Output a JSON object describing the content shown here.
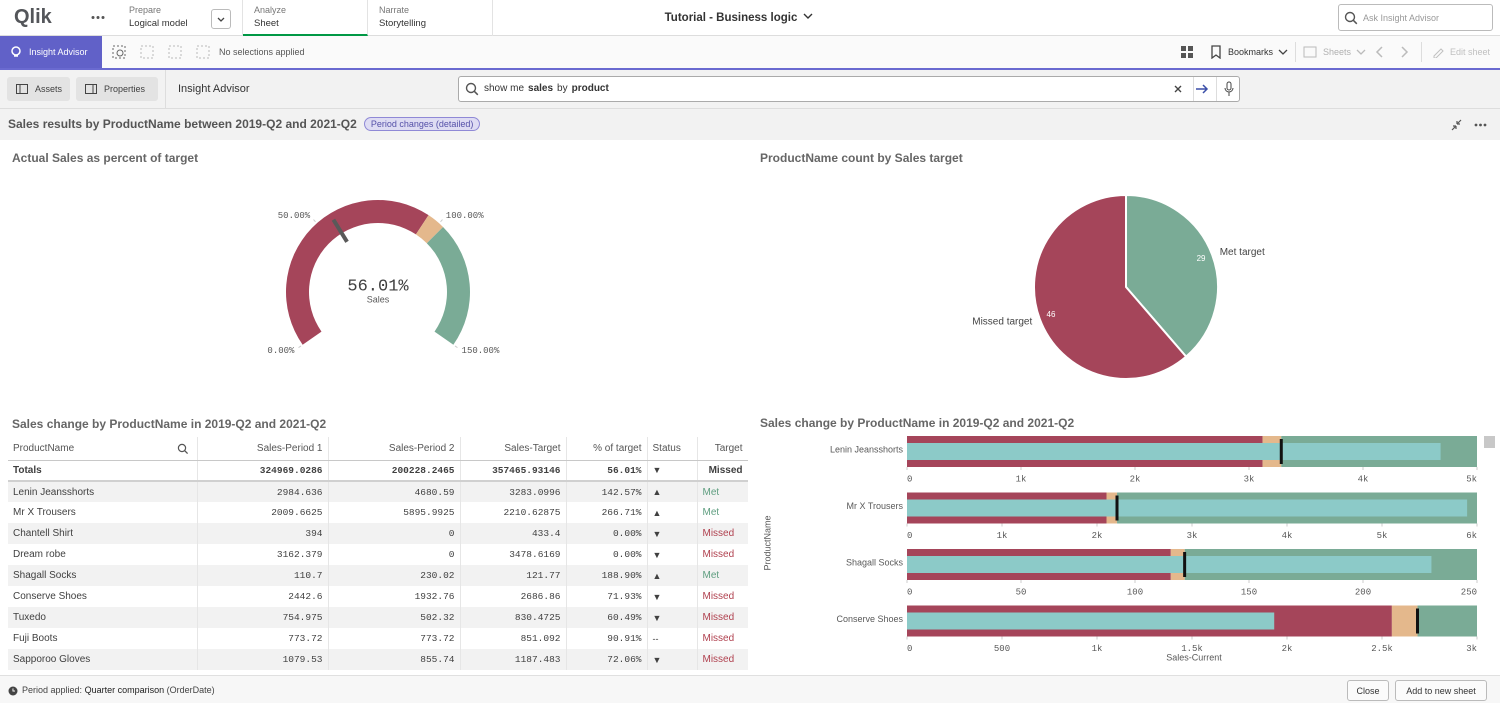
{
  "topbar": {
    "logo": "Qlik",
    "tabs": [
      {
        "label": "Prepare",
        "sub": "Logical model"
      },
      {
        "label": "Analyze",
        "sub": "Sheet"
      },
      {
        "label": "Narrate",
        "sub": "Storytelling"
      }
    ],
    "app_title": "Tutorial - Business logic",
    "search_placeholder": "Ask Insight Advisor"
  },
  "toolbar": {
    "insight_button": "Insight Advisor",
    "selections": "No selections applied",
    "bookmarks": "Bookmarks",
    "sheets": "Sheets",
    "edit": "Edit sheet"
  },
  "panel_bar": {
    "assets": "Assets",
    "properties": "Properties",
    "title": "Insight Advisor",
    "query": [
      {
        "text": "show me",
        "bold": false
      },
      {
        "text": "sales",
        "bold": true
      },
      {
        "text": "by",
        "bold": false
      },
      {
        "text": "product",
        "bold": true
      }
    ]
  },
  "results": {
    "title": "Sales results by ProductName between 2019-Q2 and 2021-Q2",
    "badge": "Period changes (detailed)"
  },
  "chart_data": [
    {
      "type": "gauge",
      "title": "Actual Sales as percent of target",
      "value": 56.01,
      "value_label": "56.01%",
      "measure": "Sales",
      "ylim": [
        0,
        150
      ],
      "yticks": [
        {
          "value": 0,
          "label": "0.00%"
        },
        {
          "value": 50,
          "label": "50.00%"
        },
        {
          "value": 100,
          "label": "100.00%"
        },
        {
          "value": 150,
          "label": "150.00%"
        }
      ],
      "segments": [
        {
          "to": 95,
          "color": "#a5455a"
        },
        {
          "to": 102,
          "color": "#e4b88c"
        },
        {
          "to": 150,
          "color": "#7aab96"
        }
      ],
      "needle_color": "#595959"
    },
    {
      "type": "pie",
      "title": "ProductName count by Sales target",
      "categories": [
        "Met target",
        "Missed target"
      ],
      "values": [
        29,
        46
      ],
      "colors": [
        "#7aab96",
        "#a5455a"
      ]
    },
    {
      "type": "bullet",
      "title": "Sales change by ProductName in 2019-Q2 and 2021-Q2",
      "ylabel": "ProductName",
      "xlabel": "Sales-Current",
      "range_colors": [
        "#a5455a",
        "#e4b88c",
        "#7aab96"
      ],
      "bar_color": "#8ccac8",
      "marker_color": "#111111",
      "bullets": [
        {
          "category": "Lenin Jeansshorts",
          "value": 4680.59,
          "target": 3283.0996,
          "ranges": [
            3119,
            3283
          ],
          "xlim": [
            0,
            5000
          ],
          "xticks": [
            0,
            {
              "value": 1000,
              "label": "1k"
            },
            {
              "value": 2000,
              "label": "2k"
            },
            {
              "value": 3000,
              "label": "3k"
            },
            {
              "value": 4000,
              "label": "4k"
            },
            {
              "value": 5000,
              "label": "5k"
            }
          ]
        },
        {
          "category": "Mr X Trousers",
          "value": 5895.9925,
          "target": 2210.62875,
          "ranges": [
            2100,
            2211
          ],
          "xlim": [
            0,
            6000
          ],
          "xticks": [
            0,
            {
              "value": 1000,
              "label": "1k"
            },
            {
              "value": 2000,
              "label": "2k"
            },
            {
              "value": 3000,
              "label": "3k"
            },
            {
              "value": 4000,
              "label": "4k"
            },
            {
              "value": 5000,
              "label": "5k"
            },
            {
              "value": 6000,
              "label": "6k"
            }
          ]
        },
        {
          "category": "Shagall Socks",
          "value": 230.02,
          "target": 121.77,
          "ranges": [
            115.7,
            121.8
          ],
          "xlim": [
            0,
            250
          ],
          "xticks": [
            0,
            50,
            100,
            150,
            200,
            250
          ]
        },
        {
          "category": "Conserve Shoes",
          "value": 1932.76,
          "target": 2686.86,
          "ranges": [
            2552,
            2687
          ],
          "xlim": [
            0,
            3000
          ],
          "xticks": [
            0,
            500,
            {
              "value": 1000,
              "label": "1k"
            },
            {
              "value": 1500,
              "label": "1.5k"
            },
            {
              "value": 2000,
              "label": "2k"
            },
            {
              "value": 2500,
              "label": "2.5k"
            },
            {
              "value": 3000,
              "label": "3k"
            }
          ]
        }
      ]
    }
  ],
  "table": {
    "title": "Sales change by ProductName in 2019-Q2 and 2021-Q2",
    "columns": [
      "ProductName",
      "Sales-Period 1",
      "Sales-Period 2",
      "Sales-Target",
      "% of target",
      "Status",
      "Target"
    ],
    "totals": [
      "Totals",
      "324969.0286",
      "200228.2465",
      "357465.93146",
      "56.01%",
      "▼",
      "Missed"
    ],
    "rows": [
      [
        "Lenin Jeansshorts",
        "2984.636",
        "4680.59",
        "3283.0996",
        "142.57%",
        "▲",
        "Met"
      ],
      [
        "Mr X Trousers",
        "2009.6625",
        "5895.9925",
        "2210.62875",
        "266.71%",
        "▲",
        "Met"
      ],
      [
        "Chantell Shirt",
        "394",
        "0",
        "433.4",
        "0.00%",
        "▼",
        "Missed"
      ],
      [
        "Dream robe",
        "3162.379",
        "0",
        "3478.6169",
        "0.00%",
        "▼",
        "Missed"
      ],
      [
        "Shagall Socks",
        "110.7",
        "230.02",
        "121.77",
        "188.90%",
        "▲",
        "Met"
      ],
      [
        "Conserve Shoes",
        "2442.6",
        "1932.76",
        "2686.86",
        "71.93%",
        "▼",
        "Missed"
      ],
      [
        "Tuxedo",
        "754.975",
        "502.32",
        "830.4725",
        "60.49%",
        "▼",
        "Missed"
      ],
      [
        "Fuji Boots",
        "773.72",
        "773.72",
        "851.092",
        "90.91%",
        "--",
        "Missed"
      ],
      [
        "Sapporoo Gloves",
        "1079.53",
        "855.74",
        "1187.483",
        "72.06%",
        "▼",
        "Missed"
      ]
    ],
    "target_colors": {
      "Met": "#5f9e80",
      "Missed": "#b0414f"
    }
  },
  "footer": {
    "period_label": "Period applied:",
    "period": "Quarter comparison",
    "field": "(OrderDate)",
    "buttons": [
      "Close",
      "Add to new sheet"
    ]
  }
}
